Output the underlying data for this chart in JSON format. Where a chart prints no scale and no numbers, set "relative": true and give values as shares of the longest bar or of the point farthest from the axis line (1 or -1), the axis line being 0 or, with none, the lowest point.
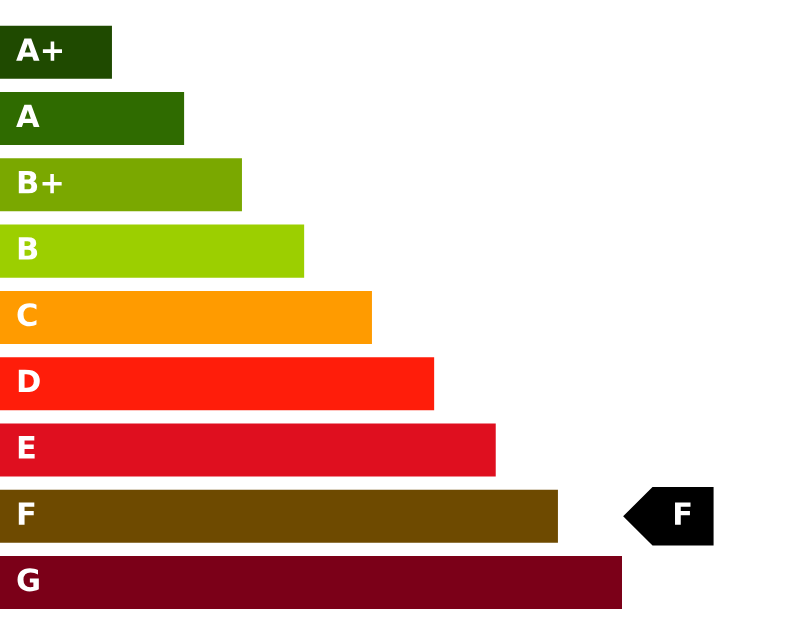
{
  "chart_data": {
    "type": "bar",
    "orientation": "horizontal",
    "relative": true,
    "categories": [
      "A+",
      "A",
      "B+",
      "B",
      "C",
      "D",
      "E",
      "F",
      "G"
    ],
    "values": [
      0.18,
      0.296,
      0.389,
      0.489,
      0.598,
      0.698,
      0.797,
      0.897,
      1.0
    ],
    "colors": [
      "#1f4a00",
      "#2f6b00",
      "#7aa800",
      "#9ccf00",
      "#ff9b00",
      "#ff1d0a",
      "#df0f1f",
      "#6e4a00",
      "#7b0018"
    ],
    "annotations": [
      "F"
    ]
  }
}
